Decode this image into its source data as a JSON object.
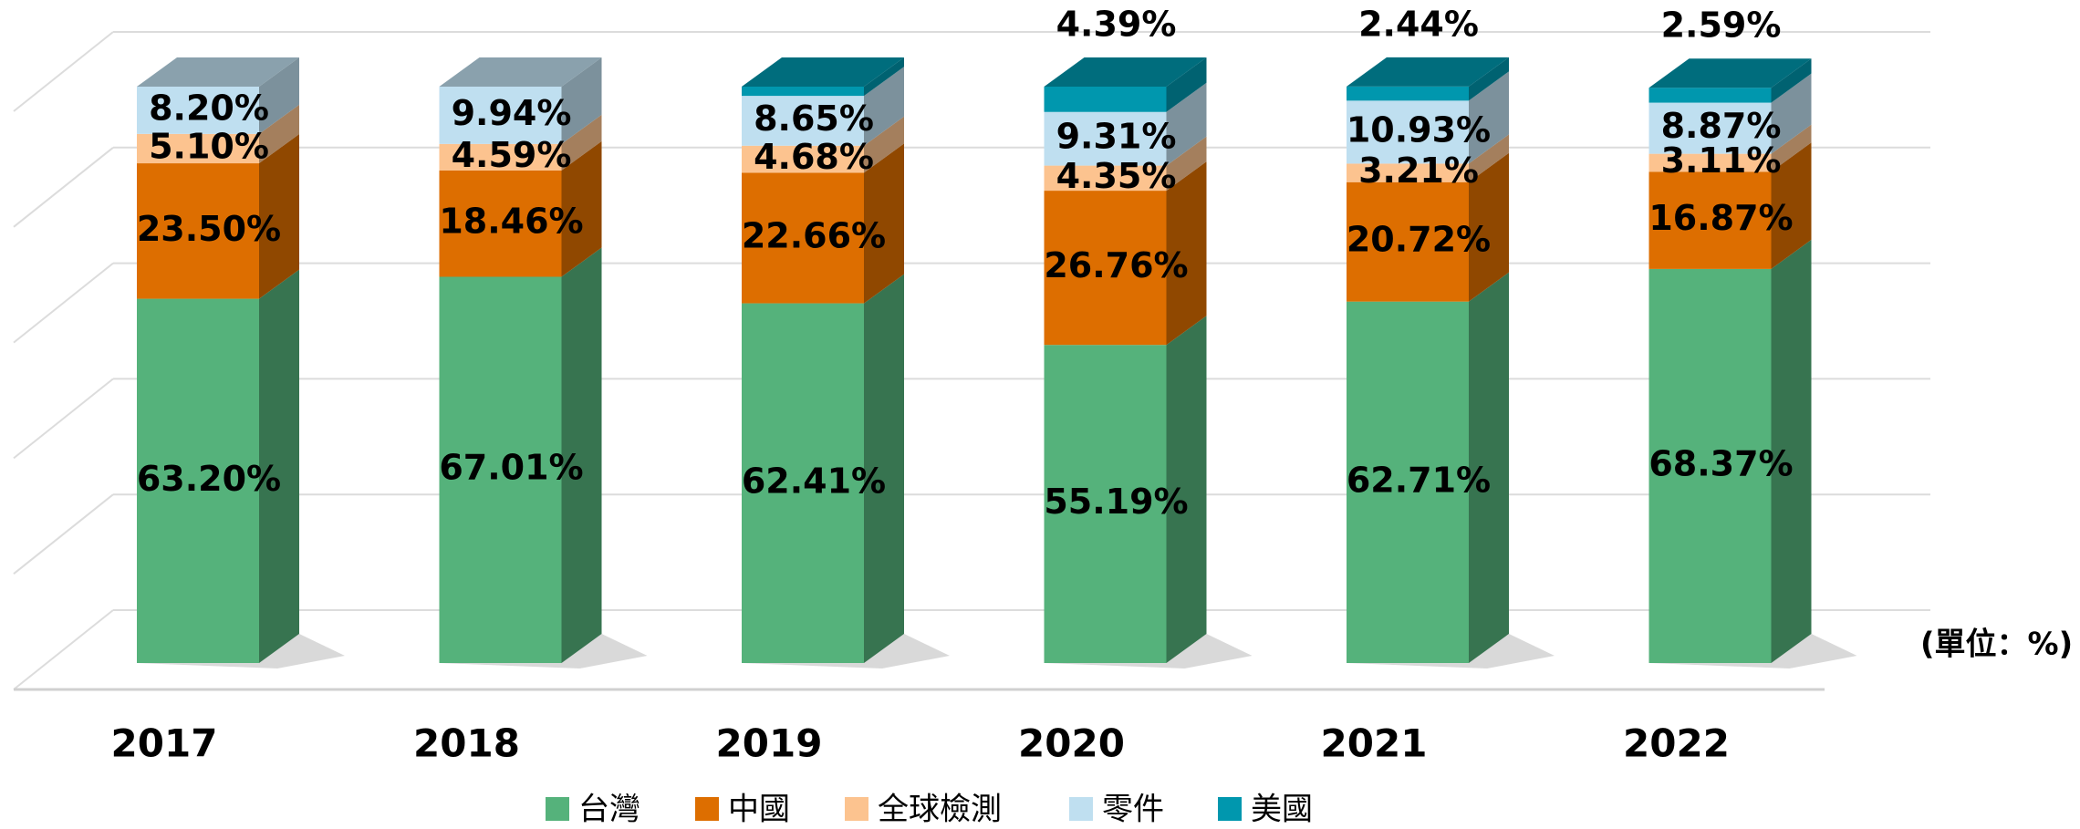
{
  "chart_data": {
    "type": "bar3d",
    "stacked": true,
    "categories": [
      "2017",
      "2018",
      "2019",
      "2020",
      "2021",
      "2022"
    ],
    "unit_label": "(單位：%)",
    "ylim": [
      0,
      100
    ],
    "yticks": [
      0,
      20,
      40,
      60,
      80,
      100
    ],
    "grid": true,
    "legend": "bottom",
    "series": [
      {
        "name": "台灣",
        "color": "#55b27b",
        "values": [
          63.2,
          67.01,
          62.41,
          55.19,
          62.71,
          68.37
        ],
        "value_labels": [
          "63.20%",
          "67.01%",
          "62.41%",
          "55.19%",
          "62.71%",
          "68.37%"
        ]
      },
      {
        "name": "中國",
        "color": "#dd6e00",
        "values": [
          23.5,
          18.46,
          22.66,
          26.76,
          20.72,
          16.87
        ],
        "value_labels": [
          "23.50%",
          "18.46%",
          "22.66%",
          "26.76%",
          "20.72%",
          "16.87%"
        ]
      },
      {
        "name": "全球檢測",
        "color": "#fcc38f",
        "values": [
          5.1,
          4.59,
          4.68,
          4.35,
          3.21,
          3.11
        ],
        "value_labels": [
          "5.10%",
          "4.59%",
          "4.68%",
          "4.35%",
          "3.21%",
          "3.11%"
        ]
      },
      {
        "name": "零件",
        "color": "#bfdff0",
        "values": [
          8.2,
          9.94,
          8.65,
          9.31,
          10.93,
          8.87
        ],
        "value_labels": [
          "8.20%",
          "9.94%",
          "8.65%",
          "9.31%",
          "10.93%",
          "8.87%"
        ]
      },
      {
        "name": "美國",
        "color": "#0097ae",
        "values": [
          0,
          0,
          1.6,
          4.39,
          2.44,
          2.59
        ],
        "value_labels": [
          null,
          null,
          null,
          "4.39%",
          "2.44%",
          "2.59%"
        ]
      }
    ]
  }
}
